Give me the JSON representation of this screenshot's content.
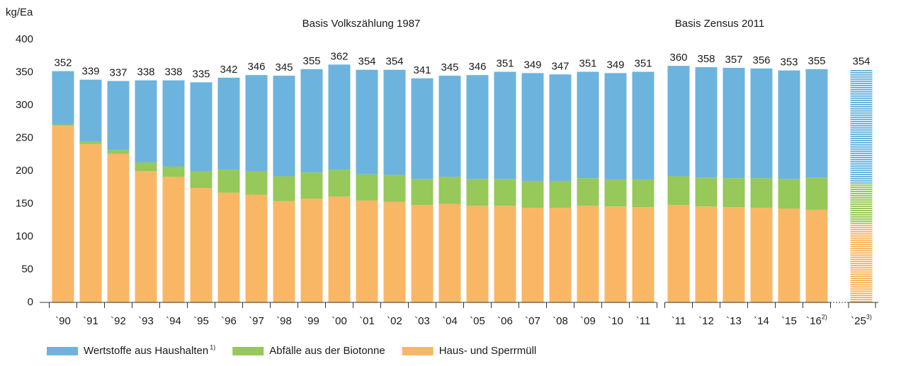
{
  "chart_data": {
    "type": "stacked-bar",
    "ylabel": "kg/Ea",
    "annotations": [
      "Basis Volkszählung 1987",
      "Basis Zensus 2011"
    ],
    "categories": [
      "`90",
      "`91",
      "`92",
      "`93",
      "`94",
      "`95",
      "`96",
      "`97",
      "`98",
      "`99",
      "`00",
      "`01",
      "`02",
      "`03",
      "`04",
      "`05",
      "`06",
      "`07",
      "`08",
      "`09",
      "`10",
      "`11",
      "`11",
      "`12",
      "`13",
      "`14",
      "`15",
      "`16",
      "`25"
    ],
    "category_notes": [
      null,
      null,
      null,
      null,
      null,
      null,
      null,
      null,
      null,
      null,
      null,
      null,
      null,
      null,
      null,
      null,
      null,
      null,
      null,
      null,
      null,
      null,
      null,
      null,
      null,
      null,
      null,
      "2)",
      "3)"
    ],
    "series": [
      {
        "name": "Haus- und Sperrmüll",
        "color": "#f9b766",
        "values": [
          269,
          241,
          226,
          200,
          191,
          174,
          167,
          164,
          154,
          158,
          161,
          155,
          153,
          148,
          150,
          147,
          147,
          144,
          144,
          147,
          146,
          145,
          148,
          146,
          145,
          144,
          143,
          141,
          120
        ]
      },
      {
        "name": "Abfälle aus der Biotonne",
        "color": "#96c85a",
        "values": [
          2,
          4,
          6,
          13,
          16,
          26,
          35,
          36,
          38,
          40,
          41,
          40,
          41,
          40,
          41,
          41,
          41,
          41,
          41,
          42,
          41,
          42,
          44,
          44,
          44,
          45,
          45,
          49,
          60
        ]
      },
      {
        "name": "Wertstoffe aus Haushalten",
        "note": "1)",
        "color": "#6cb4de",
        "values": [
          81,
          94,
          105,
          125,
          131,
          135,
          140,
          146,
          153,
          157,
          160,
          159,
          160,
          153,
          154,
          158,
          163,
          164,
          162,
          162,
          162,
          164,
          168,
          168,
          168,
          167,
          165,
          165,
          174
        ]
      }
    ],
    "totals": [
      352,
      339,
      337,
      338,
      338,
      335,
      342,
      346,
      345,
      355,
      362,
      354,
      354,
      341,
      345,
      346,
      351,
      349,
      347,
      351,
      349,
      351,
      360,
      358,
      357,
      356,
      353,
      355,
      354
    ],
    "striped_categories": [
      28
    ],
    "legend_order": [
      2,
      1,
      0
    ],
    "ylim": [
      0,
      400
    ],
    "yticks": [
      0,
      50,
      100,
      150,
      200,
      250,
      300,
      350,
      400
    ]
  }
}
